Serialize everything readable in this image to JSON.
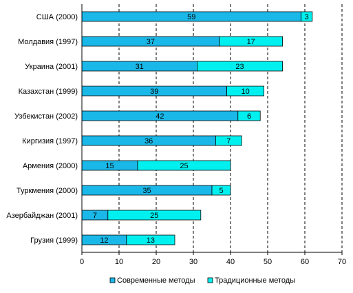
{
  "chart_data": {
    "type": "bar",
    "orientation": "horizontal",
    "stacked": true,
    "categories": [
      "США (2000)",
      "Молдавия (1997)",
      "Украина (2001)",
      "Казахстан (1999)",
      "Узбекистан (2002)",
      "Киргизия (1997)",
      "Армения (2000)",
      "Туркмения (2000)",
      "Азербайджан (2001)",
      "Грузия (1999)"
    ],
    "series": [
      {
        "name": "Современные методы",
        "values": [
          59,
          37,
          31,
          39,
          42,
          36,
          15,
          35,
          7,
          12
        ],
        "color": "#1ab8e8"
      },
      {
        "name": "Традиционные методы",
        "values": [
          3,
          17,
          23,
          10,
          6,
          7,
          25,
          5,
          25,
          13
        ],
        "color": "#00f0f0"
      }
    ],
    "x_ticks": [
      0,
      10,
      20,
      30,
      40,
      50,
      60,
      70
    ],
    "xlim": [
      0,
      70
    ],
    "grid": "vertical dashed",
    "legend_position": "bottom"
  }
}
